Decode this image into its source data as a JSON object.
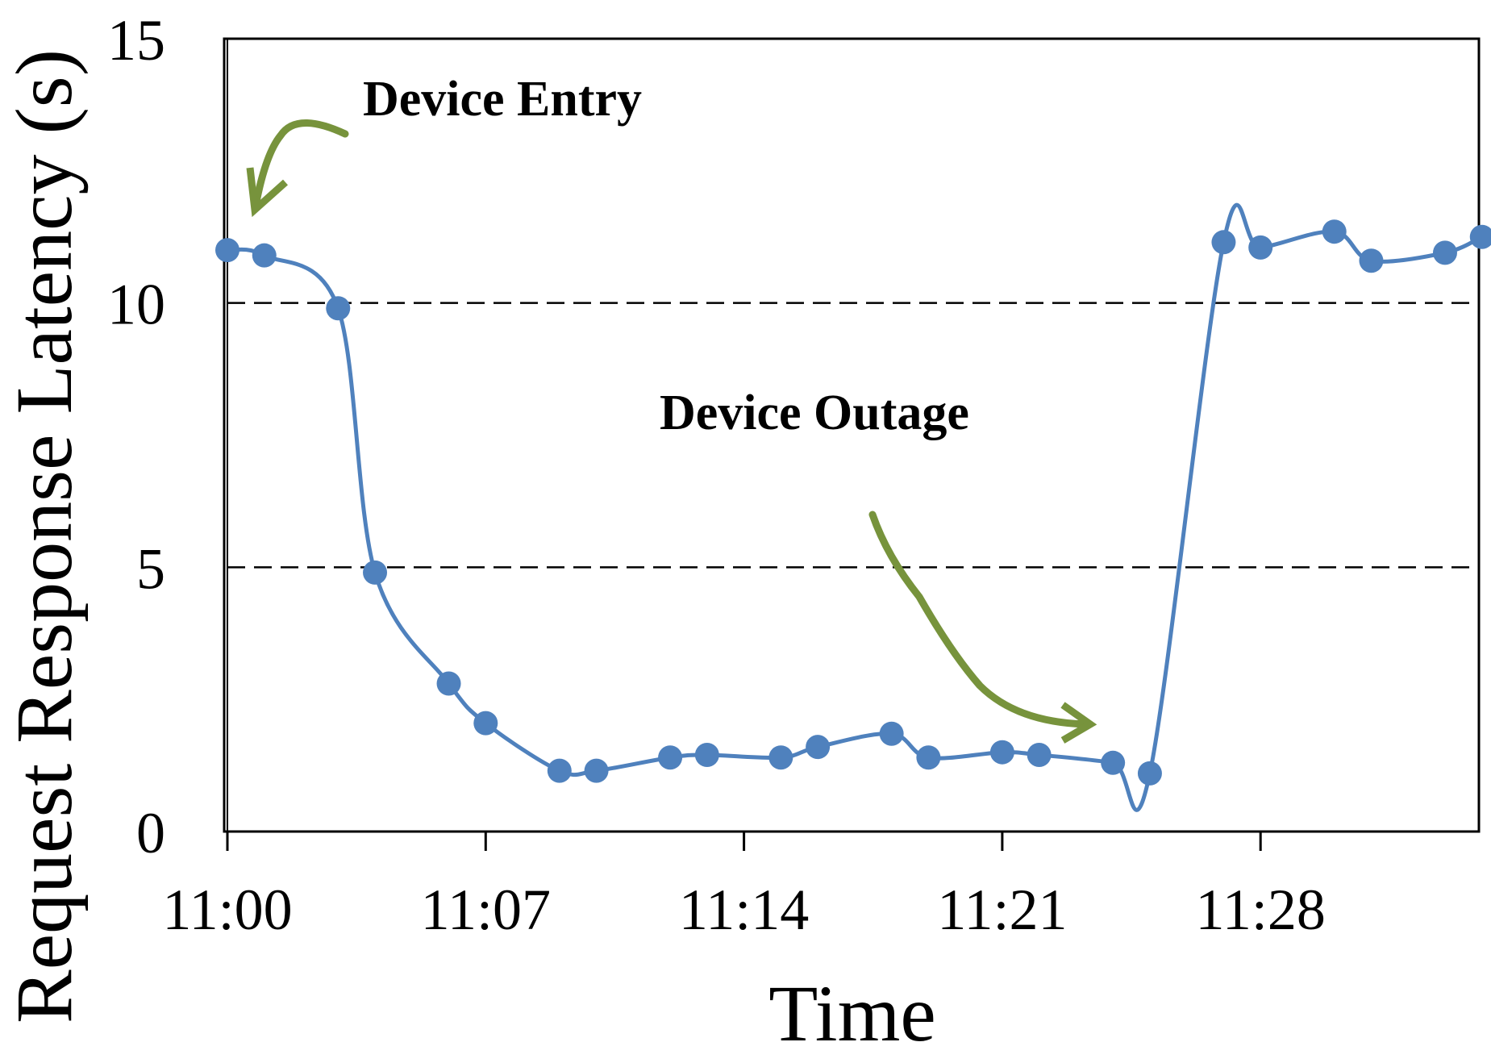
{
  "chart_data": {
    "type": "line",
    "xlabel": "Time",
    "ylabel": "Request Response Latency (s)",
    "ylim": [
      0,
      15
    ],
    "yticks": [
      0,
      5,
      10,
      15
    ],
    "xticks": [
      "11:00",
      "11:07",
      "11:14",
      "11:21",
      "11:28"
    ],
    "gridlines": [
      5,
      10
    ],
    "grid_style": "dashed",
    "x": [
      "11:00",
      "11:01",
      "11:03",
      "11:04",
      "11:06",
      "11:07",
      "11:09",
      "11:10",
      "11:12",
      "11:13",
      "11:15",
      "11:16",
      "11:18",
      "11:19",
      "11:21",
      "11:22",
      "11:24",
      "11:25",
      "11:27",
      "11:28",
      "11:30",
      "11:31",
      "11:33",
      "11:34"
    ],
    "series": [
      {
        "color": "#4f81bd",
        "values": [
          11.0,
          10.9,
          9.9,
          4.9,
          2.8,
          2.05,
          1.15,
          1.15,
          1.4,
          1.45,
          1.4,
          1.6,
          1.85,
          1.4,
          1.5,
          1.45,
          1.3,
          1.1,
          11.15,
          11.05,
          11.35,
          10.8,
          10.95,
          11.25
        ]
      }
    ],
    "annotations": [
      {
        "text": "Device Entry",
        "points_to": "11:00",
        "color": "#77933c"
      },
      {
        "text": "Device Outage",
        "points_to": "11:24",
        "color": "#77933c"
      }
    ]
  }
}
